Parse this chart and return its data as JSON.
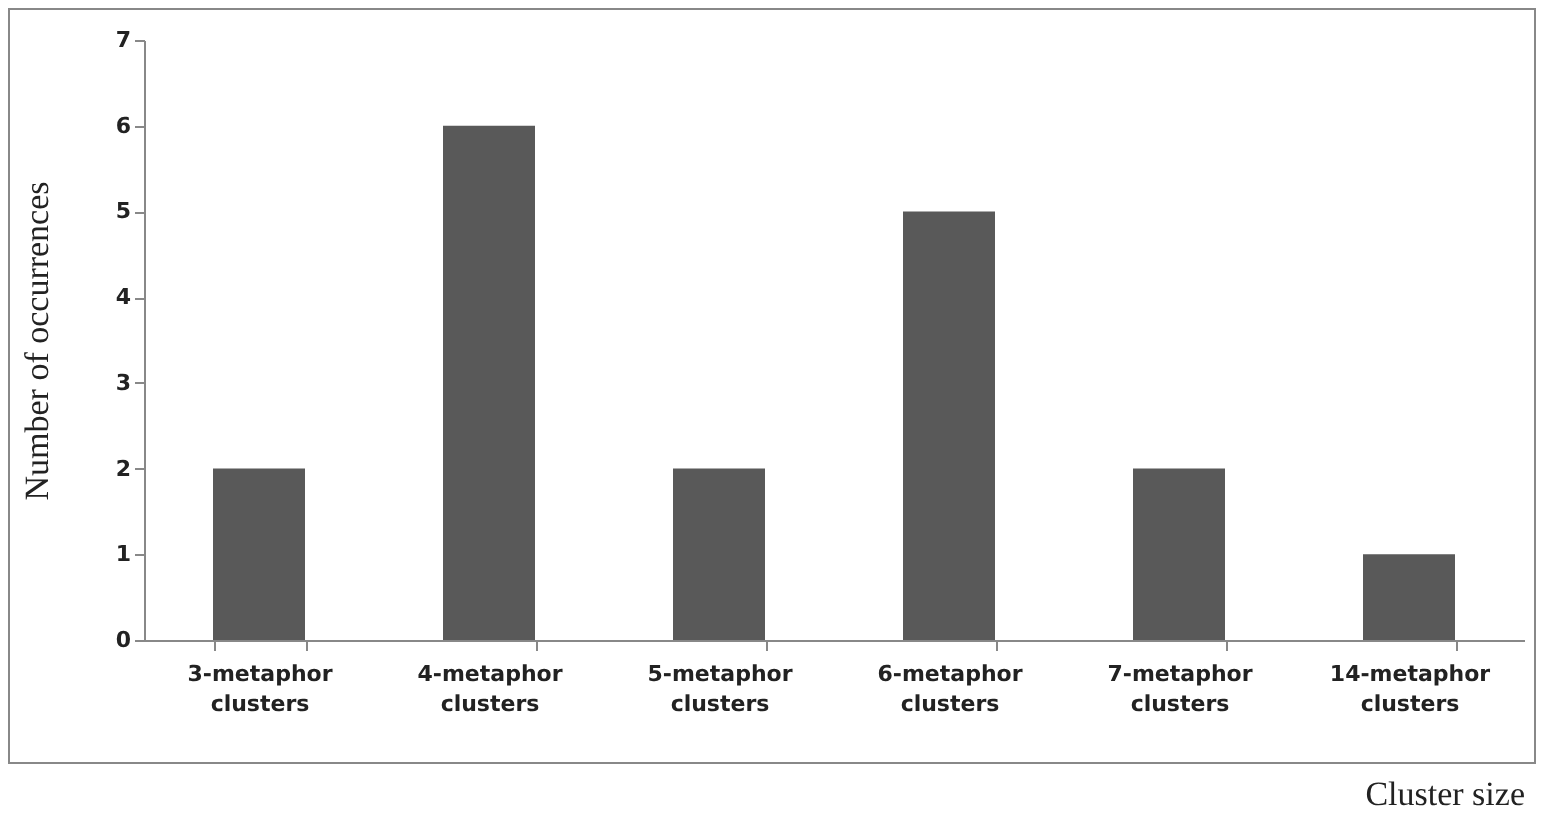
{
  "chart_data": {
    "type": "bar",
    "xlabel": "Cluster size",
    "ylabel": "Number of occurrences",
    "categories": [
      "3-metaphor clusters",
      "4-metaphor clusters",
      "5-metaphor clusters",
      "6-metaphor clusters",
      "7-metaphor clusters",
      "14-metaphor clusters"
    ],
    "values": [
      2,
      6,
      2,
      5,
      2,
      1
    ],
    "color": "#595959",
    "ylim": [
      0,
      7
    ],
    "yticks": [
      0,
      1,
      2,
      3,
      4,
      5,
      6,
      7
    ],
    "grid": false,
    "legend": false
  }
}
